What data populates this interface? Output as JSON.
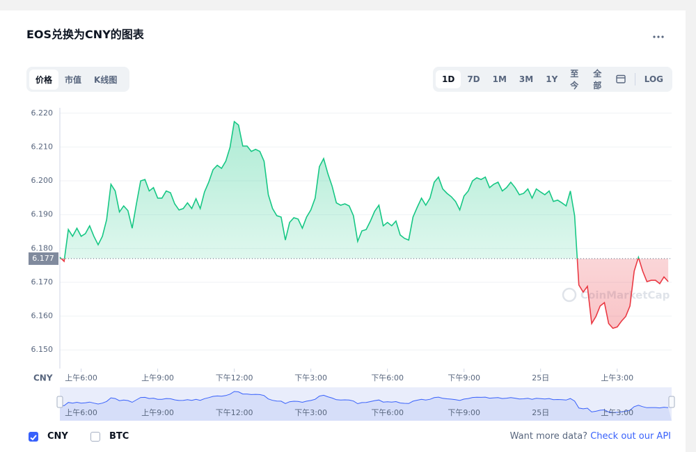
{
  "header": {
    "title": "EOS兑换为CNY的图表"
  },
  "tabs": [
    "价格",
    "市值",
    "K线图"
  ],
  "ranges": [
    "1D",
    "7D",
    "1M",
    "3M",
    "1Y",
    "至今",
    "全部",
    "LOG"
  ],
  "chart_data": {
    "type": "line",
    "y_axis_label": "CNY",
    "x": [
      310,
      320,
      330,
      340,
      350,
      360,
      370,
      380,
      390,
      400,
      410,
      420,
      430,
      440,
      450,
      460,
      470,
      480,
      490,
      500,
      510,
      520,
      530,
      540,
      550,
      560,
      570,
      580,
      590,
      600,
      610,
      620,
      630,
      640,
      650,
      660,
      670,
      680,
      690,
      700,
      710,
      720,
      730,
      740,
      750,
      760,
      770,
      780,
      790,
      800,
      810,
      820,
      830,
      840,
      850,
      860,
      870,
      880,
      890,
      900,
      910,
      920,
      930,
      940,
      950,
      960,
      970,
      980,
      990,
      1000,
      1010,
      1020,
      1030,
      1040,
      1050,
      1060,
      1070,
      1080,
      1090,
      1100,
      1110,
      1120,
      1130,
      1140,
      1150,
      1160,
      1170,
      1180,
      1190,
      1200,
      1210,
      1220,
      1230,
      1240,
      1250,
      1260,
      1270,
      1280,
      1290,
      1300,
      1310,
      1320,
      1330,
      1340,
      1350,
      1360,
      1370,
      1380,
      1390,
      1400,
      1410,
      1420,
      1430,
      1440,
      1450,
      1460,
      1470,
      1480,
      1490,
      1500,
      1510,
      1520,
      1530,
      1540,
      1550,
      1560,
      1570,
      1580,
      1590,
      1600,
      1610,
      1620,
      1630,
      1640,
      1650,
      1660,
      1670,
      1680,
      1690,
      1700,
      1710,
      1720,
      1730,
      1740
    ],
    "series": [
      {
        "name": "CNY",
        "color": "#16c784",
        "values": [
          6.1774,
          6.1762,
          6.1856,
          6.1836,
          6.186,
          6.1836,
          6.1844,
          6.1867,
          6.1836,
          6.1811,
          6.1836,
          6.1885,
          6.199,
          6.197,
          6.1908,
          6.1926,
          6.1912,
          6.186,
          6.1932,
          6.2,
          6.2004,
          6.197,
          6.198,
          6.1949,
          6.1949,
          6.197,
          6.1965,
          6.1932,
          6.1914,
          6.1918,
          6.1935,
          6.1918,
          6.1947,
          6.1918,
          6.1967,
          6.1996,
          6.2033,
          6.2046,
          6.2037,
          6.2058,
          6.2099,
          6.2175,
          6.2165,
          6.2103,
          6.2103,
          6.2087,
          6.2093,
          6.2087,
          6.2058,
          6.1959,
          6.1918,
          6.1897,
          6.1893,
          6.1825,
          6.1877,
          6.1891,
          6.1887,
          6.186,
          6.1893,
          6.1914,
          6.1949,
          6.2042,
          6.2066,
          6.2021,
          6.1984,
          6.1935,
          6.1928,
          6.1932,
          6.1926,
          6.1897,
          6.1821,
          6.1852,
          6.1856,
          6.1881,
          6.191,
          6.1928,
          6.1867,
          6.1877,
          6.1867,
          6.1881,
          6.184,
          6.183,
          6.1825,
          6.1893,
          6.1922,
          6.1949,
          6.1928,
          6.1949,
          6.1996,
          6.2011,
          6.1976,
          6.1963,
          6.1953,
          6.1939,
          6.1914,
          6.1955,
          6.197,
          6.2,
          6.2009,
          6.2004,
          6.2011,
          6.198,
          6.199,
          6.1996,
          6.197,
          6.198,
          6.1996,
          6.198,
          6.1959,
          6.1963,
          6.1976,
          6.1949,
          6.1976,
          6.1967,
          6.1959,
          6.197,
          6.1939,
          6.1943,
          6.1935,
          6.1926,
          6.197,
          6.1897,
          6.1692,
          6.1671,
          6.1688,
          6.1578,
          6.1599,
          6.163,
          6.164,
          6.1578,
          6.1564,
          6.1568,
          6.1585,
          6.1599,
          6.163,
          6.1733,
          6.1774,
          6.1733,
          6.1702,
          6.1706,
          6.1706,
          6.1696,
          6.1716,
          6.1702
        ]
      }
    ],
    "below_color": "#ea3943",
    "reference": {
      "value": 6.177,
      "label": "6.177"
    },
    "xlim": [
      310,
      1748
    ],
    "xticks": [
      {
        "value": 360,
        "label": "上午6:00"
      },
      {
        "value": 540,
        "label": "上午9:00"
      },
      {
        "value": 720,
        "label": "下午12:00"
      },
      {
        "value": 900,
        "label": "下午3:00"
      },
      {
        "value": 1080,
        "label": "下午6:00"
      },
      {
        "value": 1260,
        "label": "下午9:00"
      },
      {
        "value": 1440,
        "label": "25日"
      },
      {
        "value": 1620,
        "label": "上午3:00"
      }
    ],
    "ylim": [
      6.1445,
      6.2216
    ],
    "yticks": [
      {
        "value": 6.15,
        "label": "6.150"
      },
      {
        "value": 6.16,
        "label": "6.160"
      },
      {
        "value": 6.17,
        "label": "6.170"
      },
      {
        "value": 6.18,
        "label": "6.180"
      },
      {
        "value": 6.19,
        "label": "6.190"
      },
      {
        "value": 6.2,
        "label": "6.200"
      },
      {
        "value": 6.21,
        "label": "6.210"
      },
      {
        "value": 6.22,
        "label": "6.220"
      }
    ],
    "grid": true,
    "watermark": "CoinMarketCap"
  },
  "legend": [
    {
      "label": "CNY",
      "checked": true
    },
    {
      "label": "BTC",
      "checked": false
    }
  ],
  "footer": {
    "text": "Want more data?",
    "link": "Check out our API"
  }
}
